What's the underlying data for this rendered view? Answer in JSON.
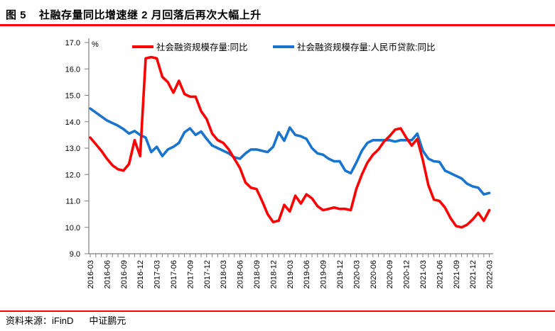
{
  "figure": {
    "label": "图 5",
    "title": "社融存量同比增速继 2 月回落后再次大幅上升"
  },
  "footer": {
    "source_label": "资料来源：iFinD",
    "organization": "中证鹏元"
  },
  "colors": {
    "accent_red": "#FF0000",
    "tsf_line": "#FF0000",
    "loan_line": "#1874CD",
    "axis_gray": "#7F7F7F"
  },
  "chart_data": {
    "type": "line",
    "unit_label": "%",
    "ylim": [
      9.0,
      17.0
    ],
    "ytick_labels": [
      "17.0",
      "16.0",
      "15.0",
      "14.0",
      "13.0",
      "12.0",
      "11.0",
      "10.0",
      "9.0"
    ],
    "grid": false,
    "legend_position": "top",
    "x_label_interval_months": 3,
    "months": [
      "2016-03",
      "2016-04",
      "2016-05",
      "2016-06",
      "2016-07",
      "2016-08",
      "2016-09",
      "2016-10",
      "2016-11",
      "2016-12",
      "2017-01",
      "2017-02",
      "2017-03",
      "2017-04",
      "2017-05",
      "2017-06",
      "2017-07",
      "2017-08",
      "2017-09",
      "2017-10",
      "2017-11",
      "2017-12",
      "2018-01",
      "2018-02",
      "2018-03",
      "2018-04",
      "2018-05",
      "2018-06",
      "2018-07",
      "2018-08",
      "2018-09",
      "2018-10",
      "2018-11",
      "2018-12",
      "2019-01",
      "2019-02",
      "2019-03",
      "2019-04",
      "2019-05",
      "2019-06",
      "2019-07",
      "2019-08",
      "2019-09",
      "2019-10",
      "2019-11",
      "2019-12",
      "2020-01",
      "2020-02",
      "2020-03",
      "2020-04",
      "2020-05",
      "2020-06",
      "2020-07",
      "2020-08",
      "2020-09",
      "2020-10",
      "2020-11",
      "2020-12",
      "2021-01",
      "2021-02",
      "2021-03",
      "2021-04",
      "2021-05",
      "2021-06",
      "2021-07",
      "2021-08",
      "2021-09",
      "2021-10",
      "2021-11",
      "2021-12",
      "2022-01",
      "2022-02",
      "2022-03"
    ],
    "series": [
      {
        "name": "社会融资规模存量:同比",
        "color": "#FF0000",
        "values": [
          13.4,
          13.15,
          12.9,
          12.6,
          12.35,
          12.2,
          12.15,
          12.4,
          13.3,
          12.7,
          16.4,
          16.45,
          16.4,
          15.7,
          15.5,
          15.1,
          15.55,
          15.05,
          14.95,
          14.95,
          14.4,
          14.1,
          13.55,
          13.3,
          13.2,
          12.95,
          12.6,
          12.25,
          11.7,
          11.5,
          11.45,
          11.0,
          10.5,
          10.2,
          10.25,
          10.85,
          10.6,
          11.2,
          10.9,
          11.25,
          11.1,
          10.8,
          10.65,
          10.7,
          10.75,
          10.7,
          10.7,
          10.65,
          11.45,
          12.0,
          12.45,
          12.75,
          12.95,
          13.25,
          13.45,
          13.7,
          13.75,
          13.4,
          13.1,
          13.35,
          12.55,
          11.6,
          11.05,
          11.0,
          10.75,
          10.35,
          10.05,
          10.0,
          10.1,
          10.3,
          10.55,
          10.25,
          10.65
        ]
      },
      {
        "name": "社会融资规模存量:人民币贷款:同比",
        "color": "#1874CD",
        "values": [
          14.5,
          14.35,
          14.2,
          14.05,
          13.95,
          13.85,
          13.72,
          13.55,
          13.65,
          13.5,
          13.4,
          12.85,
          13.05,
          12.7,
          12.95,
          13.05,
          13.2,
          13.6,
          13.75,
          13.5,
          13.63,
          13.35,
          13.1,
          13.0,
          12.9,
          12.8,
          12.65,
          12.6,
          12.8,
          12.95,
          12.95,
          12.9,
          12.85,
          13.05,
          13.6,
          13.28,
          13.78,
          13.5,
          13.45,
          13.35,
          13.0,
          12.8,
          12.75,
          12.6,
          12.5,
          12.5,
          12.15,
          12.05,
          12.45,
          12.9,
          13.2,
          13.3,
          13.3,
          13.3,
          13.3,
          13.25,
          13.3,
          13.3,
          13.3,
          13.55,
          12.9,
          12.6,
          12.5,
          12.48,
          12.15,
          12.05,
          11.95,
          11.85,
          11.65,
          11.55,
          11.5,
          11.25,
          11.3
        ]
      }
    ]
  }
}
